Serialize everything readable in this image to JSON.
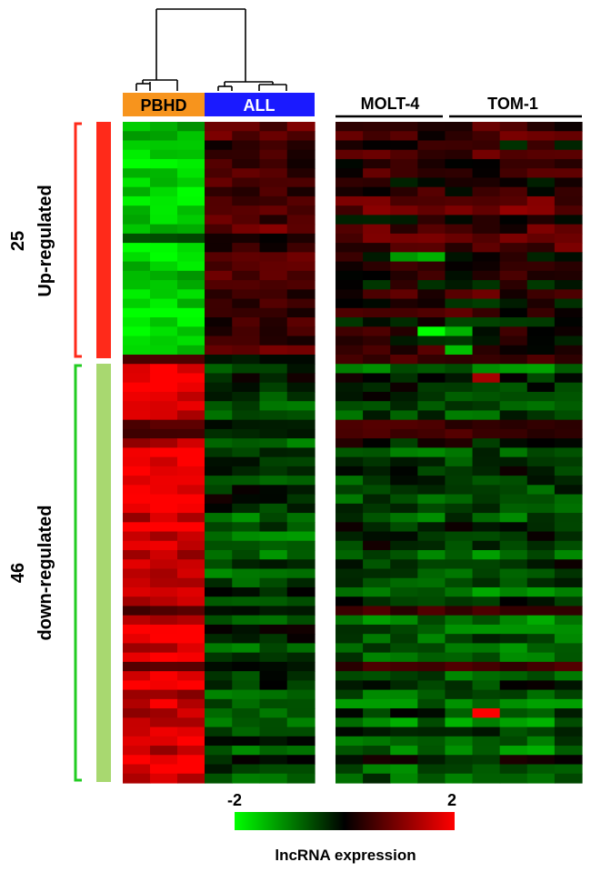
{
  "chart_data": {
    "type": "heatmap",
    "groups": [
      {
        "label": "PBHD",
        "columns": 3,
        "color": "#f7941d"
      },
      {
        "label": "ALL",
        "columns": 4,
        "color": "#1a1aff"
      }
    ],
    "cell_lines": [
      {
        "label": "MOLT-4",
        "columns": 4
      },
      {
        "label": "TOM-1",
        "columns": 5
      }
    ],
    "clusters": [
      {
        "count": "25",
        "label": "Up-regulated",
        "rows": 25,
        "color": "#ff2a1a",
        "bar_color": "#ff2a1a"
      },
      {
        "count": "46",
        "label": "down-regulated",
        "rows": 46,
        "color": "#22cc22",
        "bar_color": "#a8d870"
      }
    ],
    "colorbar": {
      "min": -2,
      "max": 2,
      "min_label": "-2",
      "max_label": "2",
      "title": "lncRNA expression",
      "low_color": "#00ff00",
      "mid_color": "#000000",
      "high_color": "#ff0000"
    },
    "primary_values": {
      "pbhd_up": -1.6,
      "all_up": 0.6,
      "pbhd_down": 1.7,
      "all_down": -0.55
    },
    "dark_rows": [
      12,
      25,
      32,
      33,
      52,
      58
    ],
    "highlight_cells": [
      {
        "panel": "right",
        "row": 22,
        "col": 3,
        "value": -2
      },
      {
        "panel": "right",
        "row": 24,
        "col": 4,
        "value": -1.5
      },
      {
        "panel": "right",
        "row": 22,
        "col": 4,
        "value": -1.4
      },
      {
        "panel": "right",
        "row": 63,
        "col": 5,
        "value": 2
      },
      {
        "panel": "right",
        "row": 27,
        "col": 5,
        "value": 1.3
      },
      {
        "panel": "right",
        "row": 14,
        "col": 3,
        "value": -1.4
      },
      {
        "panel": "right",
        "row": 14,
        "col": 2,
        "value": -1.2
      }
    ]
  }
}
